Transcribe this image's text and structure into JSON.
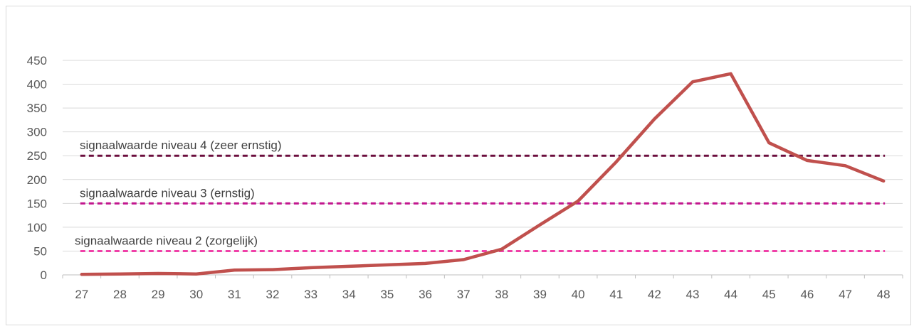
{
  "chart_data": {
    "type": "line",
    "title": "",
    "xlabel": "",
    "ylabel": "",
    "x": [
      27,
      28,
      29,
      30,
      31,
      32,
      33,
      34,
      35,
      36,
      37,
      38,
      39,
      40,
      41,
      42,
      43,
      44,
      45,
      46,
      47,
      48
    ],
    "ylim": [
      0,
      450
    ],
    "yticks": [
      0,
      50,
      100,
      150,
      200,
      250,
      300,
      350,
      400,
      450
    ],
    "grid": "horizontal",
    "legend": "none",
    "series": [
      {
        "values": [
          1,
          2,
          3,
          2,
          10,
          11,
          15,
          18,
          21,
          24,
          32,
          54,
          105,
          155,
          237,
          327,
          405,
          422,
          277,
          240,
          229,
          197
        ],
        "color": "#c0504d"
      }
    ],
    "reference_lines": [
      {
        "label": "signaalwaarde niveau 4 (zeer ernstig)",
        "value": 250,
        "color": "#6b0d3d"
      },
      {
        "label": "signaalwaarde niveau 3 (ernstig)",
        "value": 150,
        "color": "#c2168e"
      },
      {
        "label": "signaalwaarde niveau 2 (zorgelijk)",
        "value": 50,
        "color": "#f040a8"
      }
    ],
    "colors": {
      "grid": "#d9d9d9",
      "axis": "#bfbfbf",
      "tick_text": "#595959"
    }
  }
}
